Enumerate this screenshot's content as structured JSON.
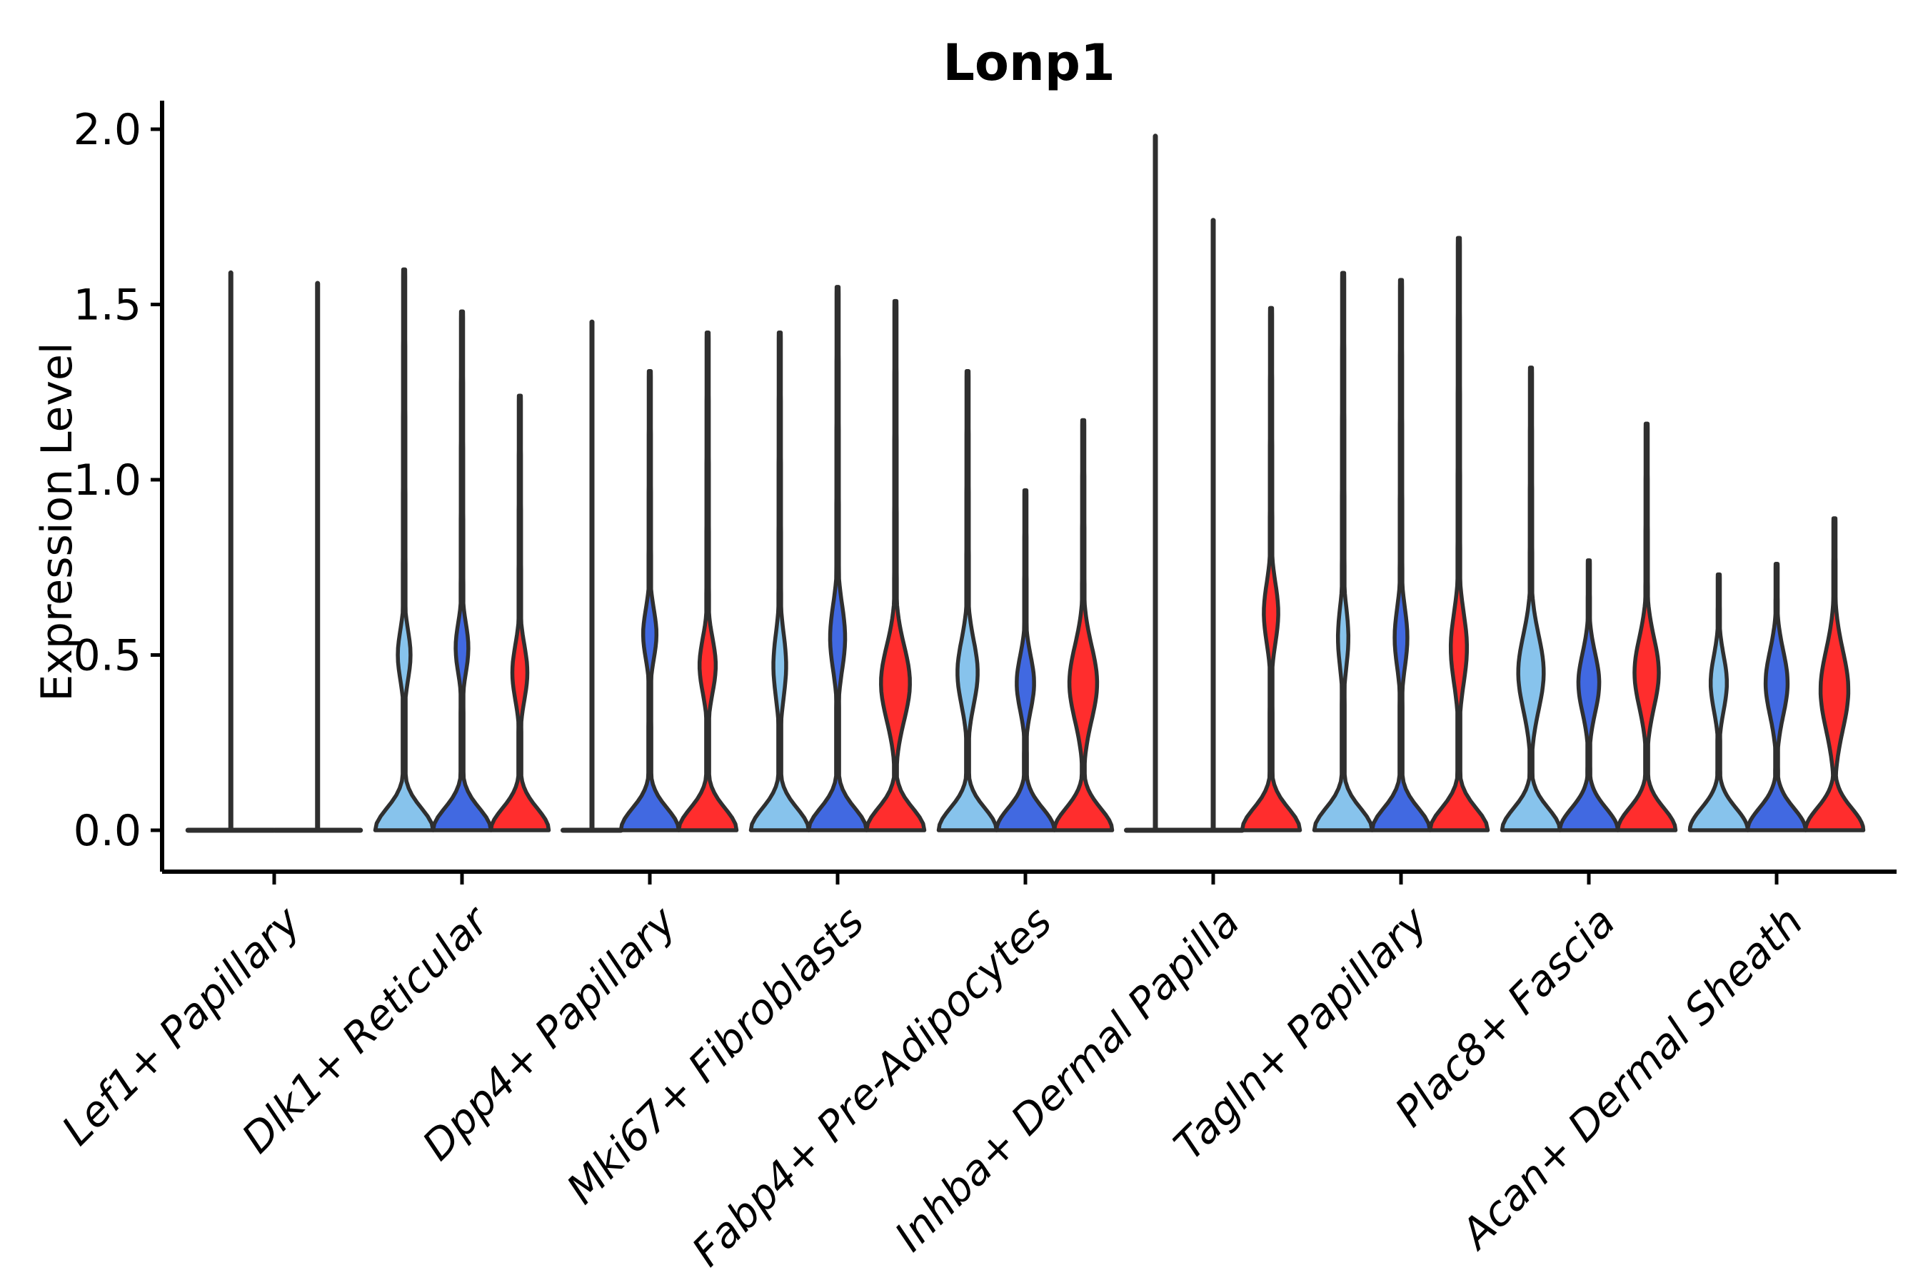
{
  "title": "Lonp1",
  "ylabel": "Expression Level",
  "chart_data": {
    "type": "violin",
    "title": "Lonp1",
    "xlabel": "",
    "ylabel": "Expression Level",
    "ylim": [
      -0.12,
      2.08
    ],
    "yticks": [
      "0.0",
      "0.5",
      "1.0",
      "1.5",
      "2.0"
    ],
    "ytick_values": [
      0,
      0.5,
      1.0,
      1.5,
      2.0
    ],
    "grid": false,
    "legend": "none",
    "edge_color": "#2f2f2f",
    "axis_color": "#000000",
    "split_colors": {
      "light_blue": "#87C3EC",
      "blue": "#4169E1",
      "red": "#FF2D2D"
    },
    "categories": [
      "Lef1+ Papillary",
      "Dlk1+ Reticular",
      "Dpp4+ Papillary",
      "Mki67+ Fibroblasts",
      "Fabp4+ Pre-Adipocytes",
      "Inhba+ Dermal Papilla",
      "Tagln+ Papillary",
      "Plac8+ Fascia",
      "Acan+ Dermal Sheath"
    ],
    "groups": [
      {
        "category": "Lef1+ Papillary",
        "violins": [
          {
            "color": "light_blue",
            "kind": "spike",
            "max": 1.59
          },
          {
            "color": "blue",
            "kind": "spike",
            "max": 1.56
          }
        ]
      },
      {
        "category": "Dlk1+ Reticular",
        "violins": [
          {
            "color": "light_blue",
            "kind": "violin",
            "max": 1.6,
            "bulge_center": 0.5,
            "bulge_sd": 0.1,
            "bulge_width": 0.22
          },
          {
            "color": "blue",
            "kind": "violin",
            "max": 1.48,
            "bulge_center": 0.52,
            "bulge_sd": 0.1,
            "bulge_width": 0.22
          },
          {
            "color": "red",
            "kind": "violin",
            "max": 1.24,
            "bulge_center": 0.45,
            "bulge_sd": 0.11,
            "bulge_width": 0.26
          }
        ]
      },
      {
        "category": "Dpp4+ Papillary",
        "violins": [
          {
            "color": "light_blue",
            "kind": "spike",
            "max": 1.45
          },
          {
            "color": "blue",
            "kind": "violin",
            "max": 1.31,
            "bulge_center": 0.56,
            "bulge_sd": 0.1,
            "bulge_width": 0.23
          },
          {
            "color": "red",
            "kind": "violin",
            "max": 1.42,
            "bulge_center": 0.47,
            "bulge_sd": 0.11,
            "bulge_width": 0.28
          }
        ]
      },
      {
        "category": "Mki67+ Fibroblasts",
        "violins": [
          {
            "color": "light_blue",
            "kind": "violin",
            "max": 1.42,
            "bulge_center": 0.47,
            "bulge_sd": 0.13,
            "bulge_width": 0.22
          },
          {
            "color": "blue",
            "kind": "violin",
            "max": 1.55,
            "bulge_center": 0.55,
            "bulge_sd": 0.13,
            "bulge_width": 0.26
          },
          {
            "color": "red",
            "kind": "violin",
            "max": 1.51,
            "bulge_center": 0.42,
            "bulge_sd": 0.15,
            "bulge_width": 0.5
          }
        ]
      },
      {
        "category": "Fabp4+ Pre-Adipocytes",
        "violins": [
          {
            "color": "light_blue",
            "kind": "violin",
            "max": 1.31,
            "bulge_center": 0.45,
            "bulge_sd": 0.13,
            "bulge_width": 0.35
          },
          {
            "color": "blue",
            "kind": "violin",
            "max": 0.97,
            "bulge_center": 0.42,
            "bulge_sd": 0.11,
            "bulge_width": 0.3
          },
          {
            "color": "red",
            "kind": "violin",
            "max": 1.17,
            "bulge_center": 0.42,
            "bulge_sd": 0.15,
            "bulge_width": 0.48
          }
        ]
      },
      {
        "category": "Inhba+ Dermal Papilla",
        "violins": [
          {
            "color": "light_blue",
            "kind": "spike",
            "max": 1.98
          },
          {
            "color": "blue",
            "kind": "spike",
            "max": 1.74
          },
          {
            "color": "red",
            "kind": "violin",
            "max": 1.49,
            "bulge_center": 0.62,
            "bulge_sd": 0.12,
            "bulge_width": 0.25
          }
        ]
      },
      {
        "category": "Tagln+ Papillary",
        "violins": [
          {
            "color": "light_blue",
            "kind": "violin",
            "max": 1.59,
            "bulge_center": 0.55,
            "bulge_sd": 0.12,
            "bulge_width": 0.18
          },
          {
            "color": "blue",
            "kind": "violin",
            "max": 1.57,
            "bulge_center": 0.55,
            "bulge_sd": 0.12,
            "bulge_width": 0.22
          },
          {
            "color": "red",
            "kind": "violin",
            "max": 1.69,
            "bulge_center": 0.52,
            "bulge_sd": 0.14,
            "bulge_width": 0.28
          }
        ]
      },
      {
        "category": "Plac8+ Fascia",
        "violins": [
          {
            "color": "light_blue",
            "kind": "violin",
            "max": 1.32,
            "bulge_center": 0.45,
            "bulge_sd": 0.15,
            "bulge_width": 0.44
          },
          {
            "color": "blue",
            "kind": "violin",
            "max": 0.77,
            "bulge_center": 0.42,
            "bulge_sd": 0.12,
            "bulge_width": 0.36
          },
          {
            "color": "red",
            "kind": "violin",
            "max": 1.16,
            "bulge_center": 0.45,
            "bulge_sd": 0.14,
            "bulge_width": 0.42
          }
        ]
      },
      {
        "category": "Acan+ Dermal Sheath",
        "violins": [
          {
            "color": "light_blue",
            "kind": "violin",
            "max": 0.73,
            "bulge_center": 0.42,
            "bulge_sd": 0.11,
            "bulge_width": 0.28
          },
          {
            "color": "blue",
            "kind": "violin",
            "max": 0.76,
            "bulge_center": 0.42,
            "bulge_sd": 0.13,
            "bulge_width": 0.38
          },
          {
            "color": "red",
            "kind": "violin",
            "max": 0.89,
            "bulge_center": 0.4,
            "bulge_sd": 0.16,
            "bulge_width": 0.48
          }
        ]
      }
    ]
  }
}
